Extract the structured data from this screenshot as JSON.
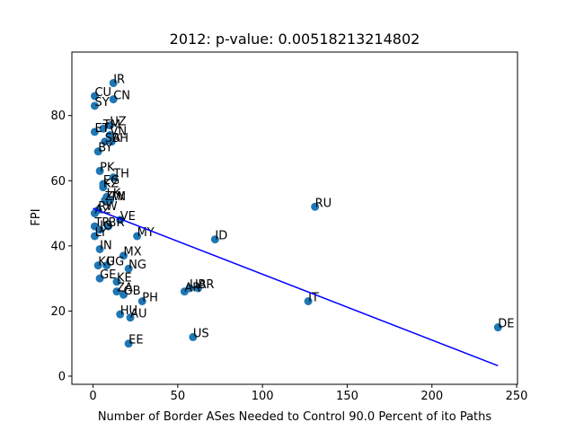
{
  "chart_data": {
    "type": "scatter",
    "title": "2012: p-value: 0.00518213214802",
    "xlabel": "Number of Border ASes Needed to Control 90.0 Percent of ito Paths",
    "ylabel": "FPI",
    "xlim": [
      -12.5,
      250.5
    ],
    "ylim": [
      -2.5,
      99.5
    ],
    "xticks": [
      0,
      50,
      100,
      150,
      200,
      250
    ],
    "yticks": [
      0,
      20,
      40,
      60,
      80
    ],
    "grid": false,
    "point_color": "#1f77b4",
    "line_color": "#0000ff",
    "fit_line": {
      "x": [
        0,
        239
      ],
      "y": [
        51.5,
        3.2
      ]
    },
    "points": [
      {
        "label": "IR",
        "x": 12,
        "y": 90
      },
      {
        "label": "CU",
        "x": 1,
        "y": 86
      },
      {
        "label": "CN",
        "x": 12,
        "y": 85
      },
      {
        "label": "SY",
        "x": 1,
        "y": 83
      },
      {
        "label": "UZ",
        "x": 10,
        "y": 77
      },
      {
        "label": "ET",
        "x": 1,
        "y": 75
      },
      {
        "label": "TM",
        "x": 6,
        "y": 76
      },
      {
        "label": "VN",
        "x": 10,
        "y": 74
      },
      {
        "label": "SA",
        "x": 7,
        "y": 72
      },
      {
        "label": "BH",
        "x": 11,
        "y": 72
      },
      {
        "label": "BY",
        "x": 3,
        "y": 69
      },
      {
        "label": "PK",
        "x": 4,
        "y": 63
      },
      {
        "label": "TH",
        "x": 12,
        "y": 61
      },
      {
        "label": "EG",
        "x": 6,
        "y": 59
      },
      {
        "label": "KZ",
        "x": 6,
        "y": 58
      },
      {
        "label": "LK",
        "x": 8,
        "y": 55
      },
      {
        "label": "ZW",
        "x": 7,
        "y": 54
      },
      {
        "label": "TN",
        "x": 10,
        "y": 54
      },
      {
        "label": "RW",
        "x": 3,
        "y": 51
      },
      {
        "label": "AZ",
        "x": 1,
        "y": 50
      },
      {
        "label": "VE",
        "x": 16,
        "y": 48
      },
      {
        "label": "TR",
        "x": 1,
        "y": 46
      },
      {
        "label": "JO",
        "x": 4,
        "y": 45
      },
      {
        "label": "BR",
        "x": 9,
        "y": 46
      },
      {
        "label": "LY",
        "x": 1,
        "y": 43
      },
      {
        "label": "MY",
        "x": 26,
        "y": 43
      },
      {
        "label": "ID",
        "x": 72,
        "y": 42
      },
      {
        "label": "IN",
        "x": 4,
        "y": 39
      },
      {
        "label": "MX",
        "x": 18,
        "y": 37
      },
      {
        "label": "KG",
        "x": 3,
        "y": 34
      },
      {
        "label": "UG",
        "x": 8,
        "y": 34
      },
      {
        "label": "NG",
        "x": 21,
        "y": 33
      },
      {
        "label": "GE",
        "x": 4,
        "y": 30
      },
      {
        "label": "KE",
        "x": 14,
        "y": 29
      },
      {
        "label": "ZA",
        "x": 14,
        "y": 26
      },
      {
        "label": "GB",
        "x": 18,
        "y": 25
      },
      {
        "label": "PH",
        "x": 29,
        "y": 23
      },
      {
        "label": "AR",
        "x": 54,
        "y": 26
      },
      {
        "label": "UA",
        "x": 57,
        "y": 27
      },
      {
        "label": "BR",
        "x": 62,
        "y": 27
      },
      {
        "label": "IT",
        "x": 127,
        "y": 23
      },
      {
        "label": "RU",
        "x": 131,
        "y": 52
      },
      {
        "label": "HU",
        "x": 16,
        "y": 19
      },
      {
        "label": "AU",
        "x": 22,
        "y": 18
      },
      {
        "label": "US",
        "x": 59,
        "y": 12
      },
      {
        "label": "EE",
        "x": 21,
        "y": 10
      },
      {
        "label": "DE",
        "x": 239,
        "y": 15
      }
    ]
  }
}
